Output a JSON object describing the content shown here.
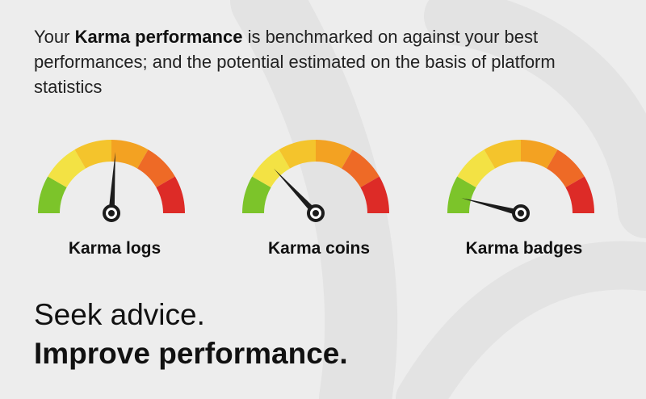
{
  "intro": {
    "prefix": "Your ",
    "emphasis": "Karma performance",
    "suffix": " is benchmarked on against your best performances; and the potential estimated on the basis of platform statistics"
  },
  "colors": {
    "segments": [
      "#7cc42a",
      "#f3e244",
      "#f4c42c",
      "#f3a222",
      "#ee6a26",
      "#dd2b27"
    ],
    "needle": "#1c1c1c",
    "background": "#ededed"
  },
  "gauges": [
    {
      "label": "Karma logs",
      "level": 0.52
    },
    {
      "label": "Karma coins",
      "level": 0.26
    },
    {
      "label": "Karma badges",
      "level": 0.08
    }
  ],
  "tagline": {
    "line1": "Seek advice.",
    "line2": "Improve performance."
  }
}
